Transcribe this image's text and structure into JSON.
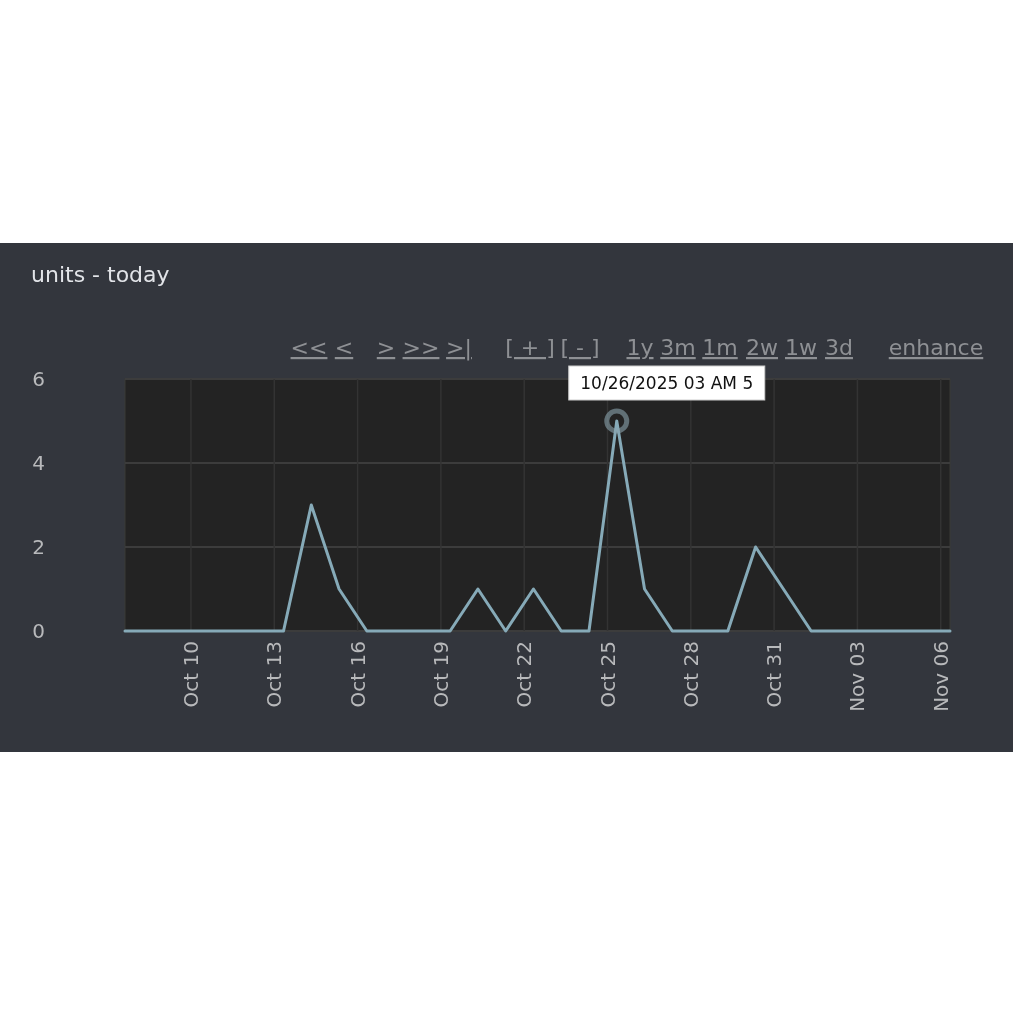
{
  "chart_data": {
    "type": "line",
    "title": "units - today",
    "x": [
      "2025-10-07T15:00",
      "2025-10-08T08:00",
      "2025-10-09T08:00",
      "2025-10-10T08:00",
      "2025-10-11T08:00",
      "2025-10-12T08:00",
      "2025-10-13T08:00",
      "2025-10-14T08:00",
      "2025-10-15T08:00",
      "2025-10-16T08:00",
      "2025-10-17T08:00",
      "2025-10-18T08:00",
      "2025-10-19T08:00",
      "2025-10-20T08:00",
      "2025-10-21T08:00",
      "2025-10-22T08:00",
      "2025-10-23T08:00",
      "2025-10-24T08:00",
      "2025-10-25T08:00",
      "2025-10-26T08:00",
      "2025-10-27T08:00",
      "2025-10-28T08:00",
      "2025-10-29T08:00",
      "2025-10-30T08:00",
      "2025-10-31T08:00",
      "2025-11-01T08:00",
      "2025-11-02T08:00",
      "2025-11-03T08:00",
      "2025-11-04T08:00",
      "2025-11-05T08:00",
      "2025-11-06T08:00"
    ],
    "series": [
      {
        "color": "#86aab8",
        "values": [
          0,
          0,
          0,
          0,
          0,
          0,
          0,
          3,
          1,
          0,
          0,
          0,
          0,
          1,
          0,
          1,
          0,
          0,
          5,
          1,
          0,
          0,
          0,
          2,
          1,
          0,
          0,
          0,
          0,
          0,
          0
        ]
      }
    ],
    "xlim": [
      "2025-10-07T15:00",
      "2025-11-06T08:00"
    ],
    "xticks": [
      {
        "value": "2025-10-10",
        "label": "Oct 10"
      },
      {
        "value": "2025-10-13",
        "label": "Oct 13"
      },
      {
        "value": "2025-10-16",
        "label": "Oct 16"
      },
      {
        "value": "2025-10-19",
        "label": "Oct 19"
      },
      {
        "value": "2025-10-22",
        "label": "Oct 22"
      },
      {
        "value": "2025-10-25",
        "label": "Oct 25"
      },
      {
        "value": "2025-10-28",
        "label": "Oct 28"
      },
      {
        "value": "2025-10-31",
        "label": "Oct 31"
      },
      {
        "value": "2025-11-03",
        "label": "Nov 03"
      },
      {
        "value": "2025-11-06",
        "label": "Nov 06"
      }
    ],
    "ylim": [
      0,
      6
    ],
    "yticks": [
      0,
      2,
      4,
      6
    ],
    "grid": true,
    "marker": "none",
    "line_style": "solid",
    "annotations": [
      {
        "text": "10/26/2025 03 AM 5",
        "x": "2025-10-25T08:00",
        "y": 5
      },
      "<<",
      "<",
      ">",
      ">>",
      ">|",
      "[ + ]",
      "[ - ]",
      "1y",
      "3m",
      "1m",
      "2w",
      "1w",
      "3d",
      "enhance"
    ]
  }
}
